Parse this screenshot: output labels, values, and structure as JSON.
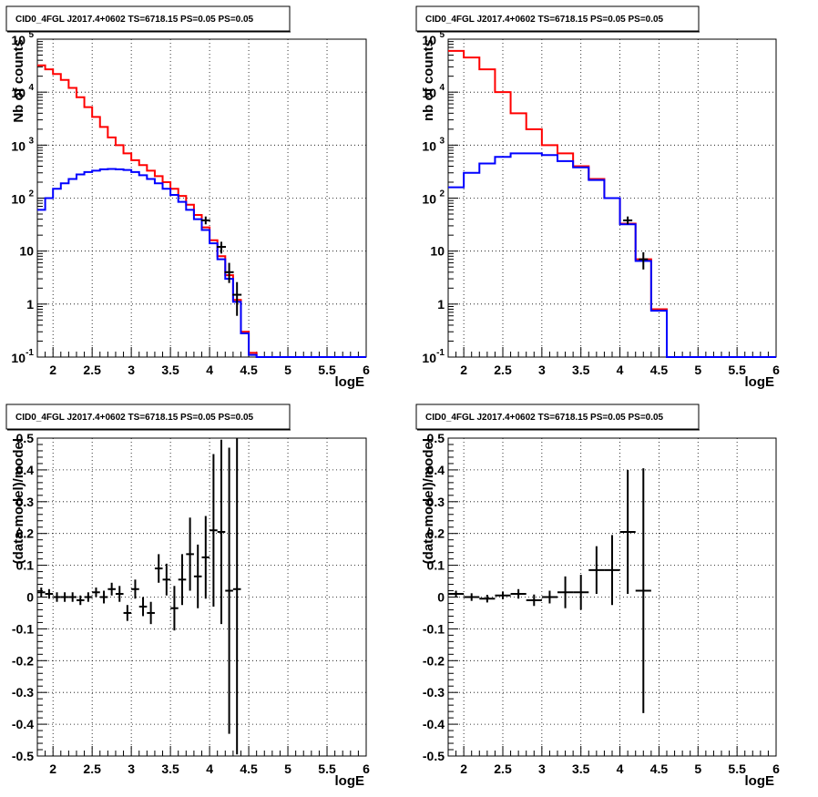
{
  "chart_data": [
    {
      "type": "line",
      "panel": "top-left",
      "title": "CID0_4FGL J2017.4+0602 TS=6718.15 PS=0.05 PS=0.05",
      "xlabel": "logE",
      "ylabel": "Nb of counts",
      "xlim": [
        1.8,
        6.0
      ],
      "ylim": [
        0.1,
        100000
      ],
      "yscale": "log",
      "grid": true,
      "x_ticks": [
        "2",
        "2.5",
        "3",
        "3.5",
        "4",
        "4.5",
        "5",
        "5.5",
        "6"
      ],
      "y_ticks": [
        "10^-1",
        "1",
        "10",
        "10^2",
        "10^3",
        "10^4",
        "10^5"
      ],
      "bin_edges": [
        1.8,
        1.9,
        2.0,
        2.1,
        2.2,
        2.3,
        2.4,
        2.5,
        2.6,
        2.7,
        2.8,
        2.9,
        3.0,
        3.1,
        3.2,
        3.3,
        3.4,
        3.5,
        3.6,
        3.7,
        3.8,
        3.9,
        4.0,
        4.1,
        4.2,
        4.3,
        4.4,
        4.5,
        4.6,
        6.0
      ],
      "series": [
        {
          "color": "#ff0000",
          "values": [
            32000,
            27000,
            22000,
            17000,
            12000,
            8000,
            5200,
            3400,
            2200,
            1400,
            1000,
            700,
            520,
            420,
            330,
            260,
            200,
            150,
            110,
            75,
            48,
            28,
            16,
            8,
            3.5,
            1.2,
            0.3,
            0.12,
            0.1
          ]
        },
        {
          "color": "#0000ff",
          "values": [
            60,
            100,
            150,
            190,
            230,
            280,
            310,
            330,
            350,
            355,
            350,
            340,
            310,
            270,
            230,
            190,
            150,
            115,
            85,
            60,
            40,
            25,
            14,
            7,
            3,
            1.1,
            0.28,
            0.11,
            0.1
          ]
        }
      ],
      "data_points": [
        {
          "x": 3.95,
          "y": 38,
          "yerr": [
            32,
            45
          ]
        },
        {
          "x": 4.15,
          "y": 12,
          "yerr": [
            9,
            15
          ]
        },
        {
          "x": 4.25,
          "y": 4,
          "yerr": [
            2.5,
            6
          ]
        },
        {
          "x": 4.35,
          "y": 1.5,
          "yerr": [
            0.6,
            2.6
          ]
        }
      ]
    },
    {
      "type": "line",
      "panel": "top-right",
      "title": "CID0_4FGL J2017.4+0602 TS=6718.15 PS=0.05 PS=0.05",
      "xlabel": "logE",
      "ylabel": "nb of counts",
      "xlim": [
        1.8,
        6.0
      ],
      "ylim": [
        0.1,
        100000
      ],
      "yscale": "log",
      "grid": true,
      "x_ticks": [
        "2",
        "2.5",
        "3",
        "3.5",
        "4",
        "4.5",
        "5",
        "5.5",
        "6"
      ],
      "y_ticks": [
        "10^-1",
        "1",
        "10",
        "10^2",
        "10^3",
        "10^4",
        "10^5"
      ],
      "bin_edges": [
        1.8,
        2.0,
        2.2,
        2.4,
        2.6,
        2.8,
        3.0,
        3.2,
        3.4,
        3.6,
        3.8,
        4.0,
        4.2,
        4.4,
        4.6,
        6.0
      ],
      "series": [
        {
          "color": "#ff0000",
          "values": [
            60000,
            45000,
            27000,
            10000,
            4000,
            2000,
            1000,
            700,
            400,
            230,
            100,
            33,
            7,
            0.8,
            0.1
          ]
        },
        {
          "color": "#0000ff",
          "values": [
            160,
            300,
            450,
            600,
            700,
            700,
            650,
            500,
            380,
            220,
            100,
            32,
            6.5,
            0.75,
            0.1
          ]
        }
      ],
      "data_points": [
        {
          "x": 4.1,
          "y": 38,
          "yerr": [
            32,
            45
          ]
        },
        {
          "x": 4.3,
          "y": 7,
          "yerr": [
            4.5,
            9.5
          ]
        }
      ]
    },
    {
      "type": "scatter",
      "panel": "bottom-left",
      "title": "CID0_4FGL J2017.4+0602 TS=6718.15 PS=0.05 PS=0.05",
      "xlabel": "logE",
      "ylabel": "(data-model)/model",
      "xlim": [
        1.8,
        6.0
      ],
      "ylim": [
        -0.5,
        0.5
      ],
      "grid": true,
      "x_ticks": [
        "2",
        "2.5",
        "3",
        "3.5",
        "4",
        "4.5",
        "5",
        "5.5",
        "6"
      ],
      "y_ticks": [
        "-0.5",
        "-0.4",
        "-0.3",
        "-0.2",
        "-0.1",
        "0",
        "0.1",
        "0.2",
        "0.3",
        "0.4",
        "0.5"
      ],
      "points": [
        {
          "x": 1.85,
          "y": 0.015,
          "yerr": 0.015
        },
        {
          "x": 1.95,
          "y": 0.01,
          "yerr": 0.015
        },
        {
          "x": 2.05,
          "y": 0.0,
          "yerr": 0.015
        },
        {
          "x": 2.15,
          "y": 0.0,
          "yerr": 0.015
        },
        {
          "x": 2.25,
          "y": 0.0,
          "yerr": 0.015
        },
        {
          "x": 2.35,
          "y": -0.01,
          "yerr": 0.015
        },
        {
          "x": 2.45,
          "y": 0.0,
          "yerr": 0.015
        },
        {
          "x": 2.55,
          "y": 0.015,
          "yerr": 0.015
        },
        {
          "x": 2.65,
          "y": 0.0,
          "yerr": 0.02
        },
        {
          "x": 2.75,
          "y": 0.025,
          "yerr": 0.02
        },
        {
          "x": 2.85,
          "y": 0.01,
          "yerr": 0.025
        },
        {
          "x": 2.95,
          "y": -0.05,
          "yerr": 0.025
        },
        {
          "x": 3.05,
          "y": 0.025,
          "yerr": 0.03
        },
        {
          "x": 3.15,
          "y": -0.03,
          "yerr": 0.03
        },
        {
          "x": 3.25,
          "y": -0.05,
          "yerr": 0.035
        },
        {
          "x": 3.35,
          "y": 0.09,
          "yerr": 0.045
        },
        {
          "x": 3.45,
          "y": 0.055,
          "yerr": 0.05
        },
        {
          "x": 3.55,
          "y": -0.035,
          "yerr": 0.07
        },
        {
          "x": 3.65,
          "y": 0.055,
          "yerr": 0.08
        },
        {
          "x": 3.75,
          "y": 0.135,
          "yerr": 0.115
        },
        {
          "x": 3.85,
          "y": 0.065,
          "yerr": 0.1
        },
        {
          "x": 3.95,
          "y": 0.125,
          "yerr": 0.13
        },
        {
          "x": 4.05,
          "y": 0.21,
          "yerr": 0.24
        },
        {
          "x": 4.15,
          "y": 0.205,
          "yerr": 0.29
        },
        {
          "x": 4.25,
          "y": 0.02,
          "yerr": 0.45
        },
        {
          "x": 4.35,
          "y": 0.025,
          "yerr": 0.52
        }
      ]
    },
    {
      "type": "scatter",
      "panel": "bottom-right",
      "title": "CID0_4FGL J2017.4+0602 TS=6718.15 PS=0.05 PS=0.05",
      "xlabel": "logE",
      "ylabel": "(data-model)/model",
      "xlim": [
        1.8,
        6.0
      ],
      "ylim": [
        -0.5,
        0.5
      ],
      "grid": true,
      "x_ticks": [
        "2",
        "2.5",
        "3",
        "3.5",
        "4",
        "4.5",
        "5",
        "5.5",
        "6"
      ],
      "y_ticks": [
        "-0.5",
        "-0.4",
        "-0.3",
        "-0.2",
        "-0.1",
        "0",
        "0.1",
        "0.2",
        "0.3",
        "0.4",
        "0.5"
      ],
      "points": [
        {
          "x": 1.9,
          "y": 0.01,
          "yerr": 0.01
        },
        {
          "x": 2.1,
          "y": 0.0,
          "yerr": 0.012
        },
        {
          "x": 2.3,
          "y": -0.005,
          "yerr": 0.012
        },
        {
          "x": 2.5,
          "y": 0.005,
          "yerr": 0.012
        },
        {
          "x": 2.7,
          "y": 0.01,
          "yerr": 0.015
        },
        {
          "x": 2.9,
          "y": -0.01,
          "yerr": 0.018
        },
        {
          "x": 3.1,
          "y": 0.0,
          "yerr": 0.02
        },
        {
          "x": 3.3,
          "y": 0.015,
          "yerr": 0.05
        },
        {
          "x": 3.5,
          "y": 0.015,
          "yerr": 0.055
        },
        {
          "x": 3.7,
          "y": 0.085,
          "yerr": 0.075
        },
        {
          "x": 3.9,
          "y": 0.085,
          "yerr": 0.11
        },
        {
          "x": 4.1,
          "y": 0.205,
          "yerr": 0.195
        },
        {
          "x": 4.3,
          "y": 0.02,
          "yerr": 0.385
        }
      ]
    }
  ]
}
